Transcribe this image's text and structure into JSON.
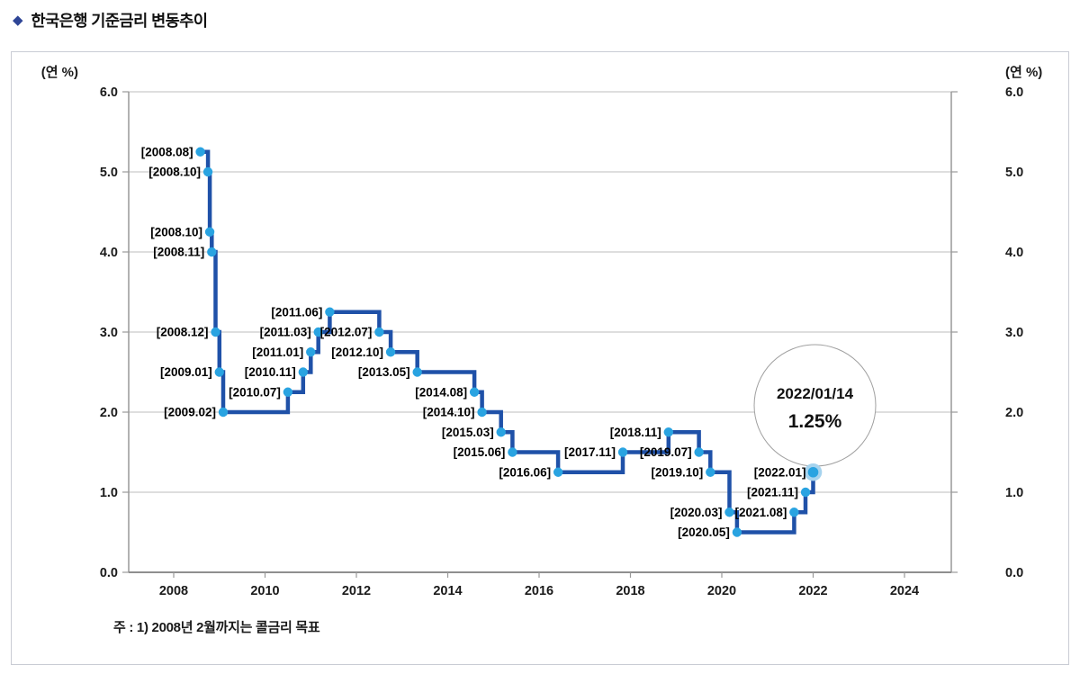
{
  "page": {
    "title": "한국은행 기준금리 변동추이",
    "title_icon": "diamond-icon"
  },
  "chart_data": {
    "type": "step-line",
    "title": "한국은행 기준금리 변동추이",
    "unit_label_left": "(연 %)",
    "unit_label_right": "(연 %)",
    "ylim": [
      0.0,
      6.0
    ],
    "yticks": [
      0.0,
      1.0,
      2.0,
      3.0,
      4.0,
      5.0,
      6.0
    ],
    "ytick_labels": [
      "0.0",
      "1.0",
      "2.0",
      "3.0",
      "4.0",
      "5.0",
      "6.0"
    ],
    "xtick_years": [
      2008,
      2010,
      2012,
      2014,
      2016,
      2018,
      2020,
      2022,
      2024
    ],
    "grid": true,
    "legend": "none",
    "points": [
      {
        "date": "2008.08",
        "rate": 5.25
      },
      {
        "date": "2008.10",
        "rate": 5.0
      },
      {
        "date": "2008.10",
        "rate": 4.25
      },
      {
        "date": "2008.11",
        "rate": 4.0
      },
      {
        "date": "2008.12",
        "rate": 3.0
      },
      {
        "date": "2009.01",
        "rate": 2.5
      },
      {
        "date": "2009.02",
        "rate": 2.0
      },
      {
        "date": "2010.07",
        "rate": 2.25
      },
      {
        "date": "2010.11",
        "rate": 2.5
      },
      {
        "date": "2011.01",
        "rate": 2.75
      },
      {
        "date": "2011.03",
        "rate": 3.0
      },
      {
        "date": "2011.06",
        "rate": 3.25
      },
      {
        "date": "2012.07",
        "rate": 3.0
      },
      {
        "date": "2012.10",
        "rate": 2.75
      },
      {
        "date": "2013.05",
        "rate": 2.5
      },
      {
        "date": "2014.08",
        "rate": 2.25
      },
      {
        "date": "2014.10",
        "rate": 2.0
      },
      {
        "date": "2015.03",
        "rate": 1.75
      },
      {
        "date": "2015.06",
        "rate": 1.5
      },
      {
        "date": "2016.06",
        "rate": 1.25
      },
      {
        "date": "2017.11",
        "rate": 1.5
      },
      {
        "date": "2018.11",
        "rate": 1.75
      },
      {
        "date": "2019.07",
        "rate": 1.5
      },
      {
        "date": "2019.10",
        "rate": 1.25
      },
      {
        "date": "2020.03",
        "rate": 0.75
      },
      {
        "date": "2020.05",
        "rate": 0.5
      },
      {
        "date": "2021.08",
        "rate": 0.75
      },
      {
        "date": "2021.11",
        "rate": 1.0
      },
      {
        "date": "2022.01",
        "rate": 1.25
      }
    ],
    "point_label_format": "[{date}]",
    "highlight_point_date": "2022.01",
    "annotation": {
      "line1": "2022/01/14",
      "line2": "1.25%"
    },
    "note": "주 : 1) 2008년 2월까지는 콜금리 목표",
    "colors": {
      "line": "#1F51A8",
      "marker": "#29A3E1",
      "marker_halo": "#A6D3EE",
      "grid": "#bdbdbd",
      "axis": "#999999",
      "title_diamond": "#2E4596",
      "annotation_border": "#a0a0a0"
    }
  }
}
